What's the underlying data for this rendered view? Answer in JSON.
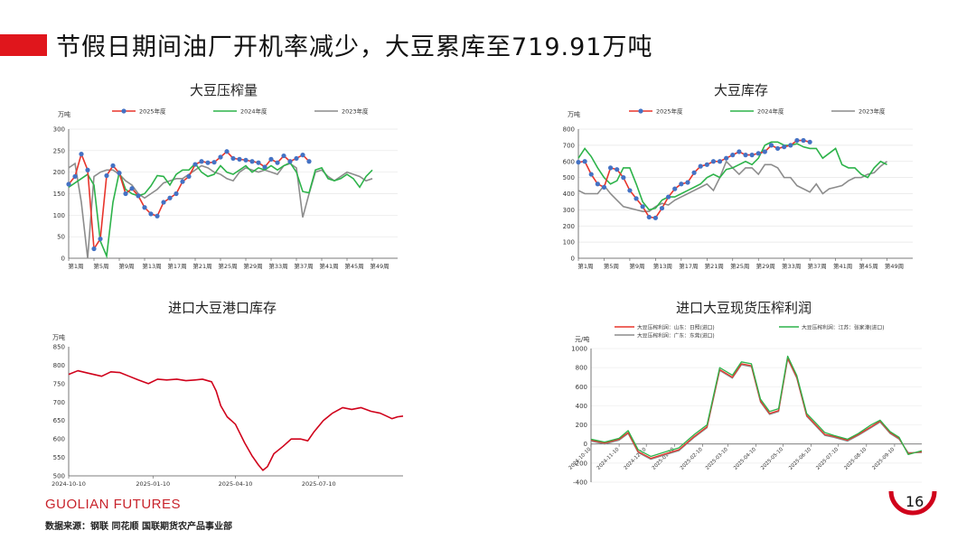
{
  "header": {
    "title": "节假日期间油厂开机率减少，大豆累库至719.91万吨",
    "accent": "#e0161c"
  },
  "footer": {
    "brand": "GUOLIAN FUTURES",
    "source": "数据来源：钢联  同花顺  国联期货农产品事业部",
    "page": "16"
  },
  "chart_data": [
    {
      "type": "line",
      "title": "大豆压榨量",
      "unit": "万吨",
      "ylim": [
        0,
        300
      ],
      "yticks": [
        0,
        50,
        100,
        150,
        200,
        250,
        300
      ],
      "xtick_labels": [
        "第1周",
        "第5周",
        "第9周",
        "第13周",
        "第17周",
        "第21周",
        "第25周",
        "第29周",
        "第33周",
        "第37周",
        "第41周",
        "第45周",
        "第49周"
      ],
      "series": [
        {
          "name": "2025年度",
          "color": "#e8352c",
          "marker": "#4472c4",
          "values": [
            172,
            190,
            242,
            205,
            22,
            45,
            192,
            215,
            198,
            150,
            162,
            145,
            118,
            103,
            98,
            130,
            140,
            150,
            178,
            190,
            218,
            225,
            222,
            223,
            235,
            248,
            232,
            230,
            228,
            225,
            222,
            212,
            230,
            222,
            238,
            225,
            232,
            240,
            225
          ]
        },
        {
          "name": "2024年度",
          "color": "#2db34a",
          "values": [
            165,
            175,
            185,
            195,
            170,
            40,
            5,
            130,
            200,
            160,
            150,
            145,
            150,
            168,
            192,
            190,
            170,
            195,
            205,
            205,
            220,
            200,
            190,
            195,
            215,
            200,
            195,
            205,
            215,
            200,
            210,
            205,
            215,
            205,
            215,
            222,
            200,
            155,
            152,
            205,
            210,
            185,
            180,
            185,
            195,
            185,
            165,
            190,
            205
          ]
        },
        {
          "name": "2023年度",
          "color": "#8c8c8c",
          "values": [
            210,
            220,
            130,
            0,
            190,
            200,
            205,
            205,
            195,
            180,
            170,
            150,
            140,
            150,
            160,
            175,
            180,
            185,
            185,
            195,
            205,
            215,
            210,
            200,
            195,
            185,
            180,
            200,
            210,
            205,
            200,
            205,
            200,
            195,
            215,
            220,
            210,
            95,
            150,
            200,
            205,
            190,
            180,
            190,
            200,
            195,
            190,
            180,
            185
          ]
        }
      ]
    },
    {
      "type": "line",
      "title": "大豆库存",
      "unit": "万吨",
      "ylim": [
        0,
        800
      ],
      "yticks": [
        0,
        100,
        200,
        300,
        400,
        500,
        600,
        700,
        800
      ],
      "xtick_labels": [
        "第1周",
        "第5周",
        "第9周",
        "第13周",
        "第17周",
        "第21周",
        "第25周",
        "第29周",
        "第33周",
        "第37周",
        "第41周",
        "第45周",
        "第49周"
      ],
      "series": [
        {
          "name": "2025年度",
          "color": "#e8352c",
          "marker": "#4472c4",
          "values": [
            595,
            600,
            520,
            460,
            440,
            560,
            550,
            500,
            420,
            370,
            320,
            255,
            250,
            310,
            380,
            430,
            460,
            470,
            530,
            570,
            580,
            600,
            600,
            620,
            640,
            660,
            640,
            640,
            650,
            660,
            700,
            680,
            690,
            700,
            730,
            730,
            720
          ]
        },
        {
          "name": "2024年度",
          "color": "#2db34a",
          "values": [
            620,
            680,
            630,
            560,
            500,
            460,
            480,
            560,
            560,
            460,
            350,
            300,
            310,
            360,
            380,
            380,
            400,
            420,
            440,
            460,
            500,
            520,
            500,
            550,
            560,
            580,
            600,
            580,
            620,
            700,
            720,
            720,
            700,
            700,
            710,
            690,
            680,
            680,
            620,
            650,
            680,
            580,
            560,
            560,
            520,
            500,
            560,
            600,
            580
          ]
        },
        {
          "name": "2023年度",
          "color": "#8c8c8c",
          "values": [
            420,
            400,
            400,
            400,
            450,
            400,
            360,
            320,
            310,
            300,
            290,
            290,
            320,
            340,
            330,
            360,
            380,
            400,
            420,
            440,
            460,
            420,
            500,
            600,
            560,
            520,
            560,
            560,
            520,
            580,
            580,
            560,
            500,
            500,
            450,
            430,
            410,
            460,
            400,
            430,
            440,
            450,
            480,
            500,
            500,
            520,
            530,
            570,
            600
          ]
        }
      ]
    },
    {
      "type": "line",
      "title": "进口大豆港口库存",
      "unit": "万吨",
      "ylim": [
        500,
        850
      ],
      "yticks": [
        500,
        550,
        600,
        650,
        700,
        750,
        800,
        850
      ],
      "x_dates": [
        "2024-10-10",
        "2025-01-10",
        "2025-04-10",
        "2025-07-10"
      ],
      "x_range": [
        "2024-10-10",
        "2025-10-10"
      ],
      "series": [
        {
          "name": "进口大豆港口库存",
          "color": "#d0021b",
          "points": [
            [
              "2024-10-10",
              775
            ],
            [
              "2024-10-20",
              785
            ],
            [
              "2024-11-01",
              778
            ],
            [
              "2024-11-15",
              770
            ],
            [
              "2024-11-25",
              782
            ],
            [
              "2024-12-05",
              780
            ],
            [
              "2024-12-15",
              770
            ],
            [
              "2024-12-25",
              760
            ],
            [
              "2025-01-05",
              750
            ],
            [
              "2025-01-15",
              762
            ],
            [
              "2025-01-25",
              760
            ],
            [
              "2025-02-05",
              762
            ],
            [
              "2025-02-15",
              758
            ],
            [
              "2025-02-25",
              760
            ],
            [
              "2025-03-05",
              762
            ],
            [
              "2025-03-15",
              755
            ],
            [
              "2025-03-20",
              730
            ],
            [
              "2025-03-25",
              690
            ],
            [
              "2025-04-01",
              660
            ],
            [
              "2025-04-10",
              640
            ],
            [
              "2025-04-20",
              590
            ],
            [
              "2025-04-28",
              555
            ],
            [
              "2025-05-05",
              530
            ],
            [
              "2025-05-10",
              515
            ],
            [
              "2025-05-15",
              525
            ],
            [
              "2025-05-22",
              560
            ],
            [
              "2025-06-01",
              580
            ],
            [
              "2025-06-10",
              600
            ],
            [
              "2025-06-20",
              600
            ],
            [
              "2025-06-28",
              595
            ],
            [
              "2025-07-05",
              620
            ],
            [
              "2025-07-15",
              650
            ],
            [
              "2025-07-25",
              670
            ],
            [
              "2025-08-05",
              685
            ],
            [
              "2025-08-15",
              680
            ],
            [
              "2025-08-25",
              685
            ],
            [
              "2025-09-05",
              675
            ],
            [
              "2025-09-15",
              670
            ],
            [
              "2025-09-22",
              662
            ],
            [
              "2025-09-28",
              655
            ],
            [
              "2025-10-04",
              660
            ],
            [
              "2025-10-10",
              662
            ]
          ]
        }
      ]
    },
    {
      "type": "line",
      "title": "进口大豆现货压榨利润",
      "unit": "元/吨",
      "ylim": [
        -400,
        1000
      ],
      "yticks": [
        -400,
        -200,
        0,
        200,
        400,
        600,
        800,
        1000
      ],
      "x_dates": [
        "2024-10-10",
        "2024-11-10",
        "2024-12-10",
        "2025-01-10",
        "2025-02-10",
        "2025-03-10",
        "2025-04-10",
        "2025-05-10",
        "2025-06-10",
        "2025-07-10",
        "2025-08-10",
        "2025-09-10"
      ],
      "x_range": [
        "2024-10-10",
        "2025-10-10"
      ],
      "series": [
        {
          "name": "大豆压榨利润：山东：日照(进口)",
          "color": "#e8352c",
          "points": [
            [
              "2024-10-10",
              40
            ],
            [
              "2024-10-25",
              10
            ],
            [
              "2024-11-10",
              50
            ],
            [
              "2024-11-20",
              120
            ],
            [
              "2024-12-01",
              -80
            ],
            [
              "2024-12-15",
              -150
            ],
            [
              "2025-01-01",
              -100
            ],
            [
              "2025-01-15",
              -60
            ],
            [
              "2025-02-01",
              80
            ],
            [
              "2025-02-15",
              180
            ],
            [
              "2025-03-01",
              780
            ],
            [
              "2025-03-15",
              700
            ],
            [
              "2025-03-25",
              840
            ],
            [
              "2025-04-05",
              820
            ],
            [
              "2025-04-15",
              450
            ],
            [
              "2025-04-25",
              320
            ],
            [
              "2025-05-05",
              350
            ],
            [
              "2025-05-15",
              900
            ],
            [
              "2025-05-25",
              700
            ],
            [
              "2025-06-05",
              300
            ],
            [
              "2025-06-15",
              200
            ],
            [
              "2025-06-25",
              100
            ],
            [
              "2025-07-05",
              80
            ],
            [
              "2025-07-20",
              40
            ],
            [
              "2025-08-01",
              100
            ],
            [
              "2025-08-15",
              180
            ],
            [
              "2025-08-25",
              240
            ],
            [
              "2025-09-05",
              120
            ],
            [
              "2025-09-15",
              60
            ],
            [
              "2025-09-25",
              -100
            ],
            [
              "2025-10-10",
              -80
            ]
          ]
        },
        {
          "name": "大豆压榨利润：江苏：张家港(进口)",
          "color": "#2db34a",
          "points": [
            [
              "2024-10-10",
              50
            ],
            [
              "2024-10-25",
              20
            ],
            [
              "2024-11-10",
              60
            ],
            [
              "2024-11-20",
              140
            ],
            [
              "2024-12-01",
              -60
            ],
            [
              "2024-12-15",
              -130
            ],
            [
              "2025-01-01",
              -80
            ],
            [
              "2025-01-15",
              -40
            ],
            [
              "2025-02-01",
              100
            ],
            [
              "2025-02-15",
              200
            ],
            [
              "2025-03-01",
              800
            ],
            [
              "2025-03-15",
              720
            ],
            [
              "2025-03-25",
              860
            ],
            [
              "2025-04-05",
              840
            ],
            [
              "2025-04-15",
              470
            ],
            [
              "2025-04-25",
              340
            ],
            [
              "2025-05-05",
              370
            ],
            [
              "2025-05-15",
              920
            ],
            [
              "2025-05-25",
              720
            ],
            [
              "2025-06-05",
              320
            ],
            [
              "2025-06-15",
              220
            ],
            [
              "2025-06-25",
              120
            ],
            [
              "2025-07-05",
              90
            ],
            [
              "2025-07-20",
              50
            ],
            [
              "2025-08-01",
              110
            ],
            [
              "2025-08-15",
              200
            ],
            [
              "2025-08-25",
              250
            ],
            [
              "2025-09-05",
              130
            ],
            [
              "2025-09-15",
              70
            ],
            [
              "2025-09-25",
              -110
            ],
            [
              "2025-10-10",
              -70
            ]
          ]
        },
        {
          "name": "大豆压榨利润：广东：东莞(进口)",
          "color": "#8c8c8c",
          "points": [
            [
              "2024-10-10",
              30
            ],
            [
              "2024-10-25",
              0
            ],
            [
              "2024-11-10",
              40
            ],
            [
              "2024-11-20",
              110
            ],
            [
              "2024-12-01",
              -90
            ],
            [
              "2024-12-15",
              -160
            ],
            [
              "2025-01-01",
              -110
            ],
            [
              "2025-01-15",
              -70
            ],
            [
              "2025-02-01",
              70
            ],
            [
              "2025-02-15",
              170
            ],
            [
              "2025-03-01",
              770
            ],
            [
              "2025-03-15",
              690
            ],
            [
              "2025-03-25",
              830
            ],
            [
              "2025-04-05",
              810
            ],
            [
              "2025-04-15",
              440
            ],
            [
              "2025-04-25",
              310
            ],
            [
              "2025-05-05",
              340
            ],
            [
              "2025-05-15",
              890
            ],
            [
              "2025-05-25",
              690
            ],
            [
              "2025-06-05",
              290
            ],
            [
              "2025-06-15",
              190
            ],
            [
              "2025-06-25",
              90
            ],
            [
              "2025-07-05",
              70
            ],
            [
              "2025-07-20",
              30
            ],
            [
              "2025-08-01",
              90
            ],
            [
              "2025-08-15",
              170
            ],
            [
              "2025-08-25",
              230
            ],
            [
              "2025-09-05",
              110
            ],
            [
              "2025-09-15",
              50
            ],
            [
              "2025-09-25",
              -90
            ],
            [
              "2025-10-10",
              -90
            ]
          ]
        }
      ]
    }
  ]
}
